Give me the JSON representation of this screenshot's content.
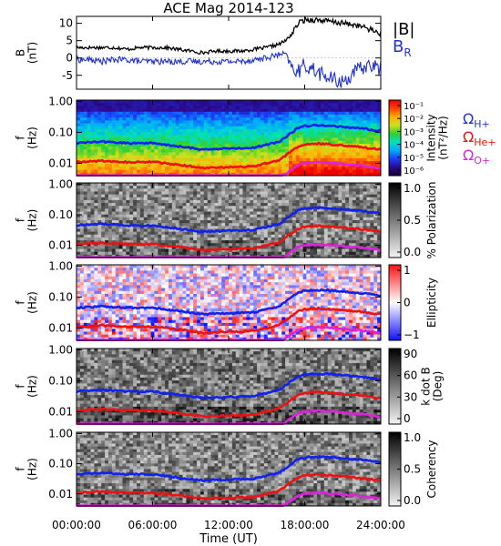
{
  "chart_data": {
    "title": "ACE Mag 2014-123",
    "x_axis": {
      "label": "Time (UT)",
      "range_hours": [
        0,
        24
      ],
      "tick_hours": [
        0,
        6,
        12,
        18,
        24
      ],
      "tick_labels": [
        "00:00:00",
        "06:00:00",
        "12:00:00",
        "18:00:00",
        "24:00:00"
      ]
    },
    "panels": [
      {
        "id": "b-field",
        "type": "line",
        "ylabel_lines": [
          "B",
          "(nT)"
        ],
        "ylim": [
          -9,
          12
        ],
        "y_ticks": [
          10,
          5,
          0,
          -5
        ],
        "legend": [
          {
            "text": "|B|",
            "color": "#000000"
          },
          {
            "text": "B",
            "sub": "R",
            "color": "#2233cc"
          }
        ],
        "series": [
          {
            "name": "|B|",
            "color": "#000000",
            "x": [
              0,
              1,
              2,
              3,
              4,
              5,
              6,
              7,
              8,
              9,
              10,
              11,
              12,
              13,
              14,
              15,
              16,
              16.5,
              17,
              17.5,
              18,
              19,
              20,
              21,
              22,
              23,
              24
            ],
            "y": [
              3,
              3,
              3,
              3,
              2.5,
              3,
              3,
              3,
              2.5,
              2,
              1.5,
              2,
              2,
              2,
              2.5,
              3,
              4,
              5,
              7,
              10,
              11,
              11,
              10.5,
              10,
              9.5,
              8.5,
              7
            ]
          },
          {
            "name": "B_R",
            "color": "#2233cc",
            "x": [
              0,
              1,
              2,
              3,
              4,
              5,
              6,
              7,
              8,
              9,
              10,
              11,
              12,
              13,
              14,
              15,
              16,
              16.5,
              17,
              17.5,
              18,
              19,
              20,
              21,
              22,
              23,
              24
            ],
            "y": [
              -0.5,
              -0.5,
              -1,
              -0.5,
              -0.5,
              -1,
              -1,
              -1,
              -1,
              -1,
              -1,
              -1,
              -1,
              -1,
              -0.5,
              0,
              1,
              1,
              -3,
              -4,
              -2,
              -4,
              -6,
              -7,
              -4,
              -2,
              -3
            ]
          }
        ]
      },
      {
        "id": "intensity",
        "type": "heatmap",
        "ylabel_lines": [
          "f",
          "(Hz)"
        ],
        "y_log_range_hz": [
          0.004,
          1.1
        ],
        "y_ticks": [
          1.0,
          0.1,
          0.01
        ],
        "y_tick_labels": [
          "1.00",
          "0.10",
          "0.01"
        ],
        "colorbar": {
          "kind": "rainbow",
          "label_lines": [
            "Intensity",
            "(nT²/Hz)"
          ],
          "tick_labels": [
            "10⁻¹",
            "10⁻²",
            "10⁻³",
            "10⁻⁴",
            "10⁻⁵",
            "10⁻⁶"
          ]
        },
        "curve_labels": [
          {
            "text": "Ω",
            "sub": "H+",
            "color": "#2233cc"
          },
          {
            "text": "Ω",
            "sub": "He+",
            "color": "#ee1111"
          },
          {
            "text": "Ω",
            "sub": "O+",
            "color": "#dd22dd"
          }
        ]
      },
      {
        "id": "polarization",
        "type": "heatmap",
        "ylabel_lines": [
          "f",
          "(Hz)"
        ],
        "y_log_range_hz": [
          0.004,
          1.1
        ],
        "y_ticks": [
          1.0,
          0.1,
          0.01
        ],
        "y_tick_labels": [
          "1.00",
          "0.10",
          "0.01"
        ],
        "colorbar": {
          "kind": "gray",
          "label_lines": [
            "% Polarization"
          ],
          "tick_labels": [
            "1.0",
            "0.5",
            "0.0"
          ]
        }
      },
      {
        "id": "ellipticity",
        "type": "heatmap",
        "ylabel_lines": [
          "f",
          "(Hz)"
        ],
        "y_log_range_hz": [
          0.004,
          1.1
        ],
        "y_ticks": [
          1.0,
          0.1,
          0.01
        ],
        "y_tick_labels": [
          "1.00",
          "0.10",
          "0.01"
        ],
        "colorbar": {
          "kind": "bwr",
          "label_lines": [
            "Ellipticity"
          ],
          "tick_labels": [
            "1",
            "0",
            "−1"
          ]
        }
      },
      {
        "id": "kdotb",
        "type": "heatmap",
        "ylabel_lines": [
          "f",
          "(Hz)"
        ],
        "y_log_range_hz": [
          0.004,
          1.1
        ],
        "y_ticks": [
          1.0,
          0.1,
          0.01
        ],
        "y_tick_labels": [
          "1.00",
          "0.10",
          "0.01"
        ],
        "colorbar": {
          "kind": "gray",
          "label_lines": [
            "k dot B",
            "(Deg)"
          ],
          "tick_labels": [
            "90",
            "60",
            "30",
            "0"
          ]
        }
      },
      {
        "id": "coherency",
        "type": "heatmap",
        "ylabel_lines": [
          "f",
          "(Hz)"
        ],
        "y_log_range_hz": [
          0.004,
          1.1
        ],
        "y_ticks": [
          1.0,
          0.1,
          0.01
        ],
        "y_tick_labels": [
          "1.00",
          "0.10",
          "0.01"
        ],
        "colorbar": {
          "kind": "gray",
          "label_lines": [
            "Coherency"
          ],
          "tick_labels": [
            "1.0",
            "0.5",
            "0.0"
          ]
        }
      }
    ],
    "gyrofrequency_curves": [
      {
        "name": "ΩH+",
        "color": "#1122ee",
        "x": [
          0,
          2,
          4,
          6,
          8,
          10,
          12,
          14,
          15,
          16,
          16.5,
          17,
          17.5,
          18,
          19,
          20,
          21,
          22,
          23,
          24
        ],
        "y": [
          0.045,
          0.05,
          0.045,
          0.045,
          0.035,
          0.028,
          0.03,
          0.032,
          0.04,
          0.05,
          0.07,
          0.1,
          0.14,
          0.16,
          0.17,
          0.165,
          0.15,
          0.14,
          0.125,
          0.11
        ]
      },
      {
        "name": "ΩHe+",
        "color": "#ee1111",
        "x": [
          0,
          2,
          4,
          6,
          8,
          10,
          12,
          14,
          15,
          16,
          16.5,
          17,
          17.5,
          18,
          19,
          20,
          21,
          22,
          23,
          24
        ],
        "y": [
          0.011,
          0.012,
          0.011,
          0.011,
          0.009,
          0.007,
          0.0075,
          0.008,
          0.01,
          0.0125,
          0.018,
          0.025,
          0.035,
          0.04,
          0.043,
          0.041,
          0.038,
          0.035,
          0.031,
          0.028
        ]
      },
      {
        "name": "ΩO+",
        "color": "#dd22dd",
        "x": [
          0,
          2,
          4,
          6,
          8,
          10,
          12,
          14,
          15,
          16,
          16.5,
          17,
          17.5,
          18,
          19,
          20,
          21,
          22,
          23,
          24
        ],
        "y": [
          0.0028,
          0.003,
          0.0028,
          0.0028,
          0.0022,
          0.0018,
          0.0019,
          0.002,
          0.0025,
          0.0031,
          0.0045,
          0.0063,
          0.0088,
          0.01,
          0.0106,
          0.0103,
          0.0094,
          0.0088,
          0.0078,
          0.0069
        ]
      }
    ]
  }
}
